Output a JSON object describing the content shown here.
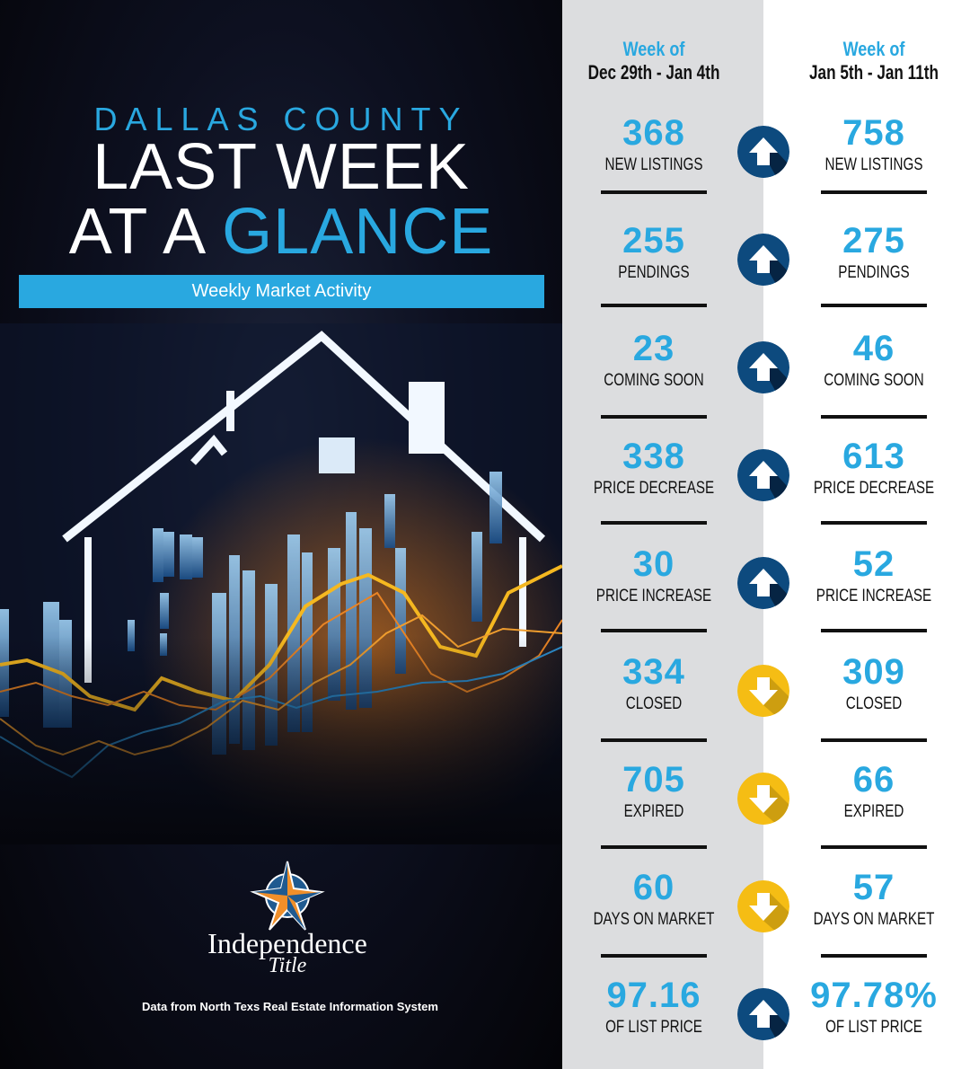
{
  "header": {
    "subtitle": "DALLAS COUNTY",
    "title_line1": "LAST WEEK",
    "title_line2_white": "AT A ",
    "title_line2_accent": "GLANCE",
    "banner": "Weekly Market Activity"
  },
  "brand": {
    "name": "Independence",
    "tagline": "Title",
    "source": "Data from North Texs Real Estate Information System"
  },
  "colors": {
    "accent": "#29a8e0",
    "up_arrow": "#0d4a7e",
    "down_arrow": "#f5bd14",
    "prev_column_bg": "#dcdddf"
  },
  "columns": [
    {
      "week_label": "Week of",
      "dates": "Dec 29th - Jan 4th"
    },
    {
      "week_label": "Week of",
      "dates": "Jan 5th - Jan 11th"
    }
  ],
  "metrics": [
    {
      "label": "NEW LISTINGS",
      "prev": "368",
      "curr": "758",
      "trend": "up",
      "icon": "arrow-up-icon"
    },
    {
      "label": "PENDINGS",
      "prev": "255",
      "curr": "275",
      "trend": "up",
      "icon": "arrow-up-icon"
    },
    {
      "label": "COMING SOON",
      "prev": "23",
      "curr": "46",
      "trend": "up",
      "icon": "arrow-up-icon"
    },
    {
      "label": "PRICE DECREASE",
      "prev": "338",
      "curr": "613",
      "trend": "up",
      "icon": "arrow-up-icon"
    },
    {
      "label": "PRICE INCREASE",
      "prev": "30",
      "curr": "52",
      "trend": "up",
      "icon": "arrow-up-icon"
    },
    {
      "label": "CLOSED",
      "prev": "334",
      "curr": "309",
      "trend": "down",
      "icon": "arrow-down-icon"
    },
    {
      "label": "EXPIRED",
      "prev": "705",
      "curr": "66",
      "trend": "down",
      "icon": "arrow-down-icon"
    },
    {
      "label": "DAYS ON MARKET",
      "prev": "60",
      "curr": "57",
      "trend": "down",
      "icon": "arrow-down-icon"
    },
    {
      "label": "OF LIST PRICE",
      "prev": "97.16",
      "curr": "97.78%",
      "trend": "up",
      "icon": "arrow-up-icon"
    }
  ]
}
